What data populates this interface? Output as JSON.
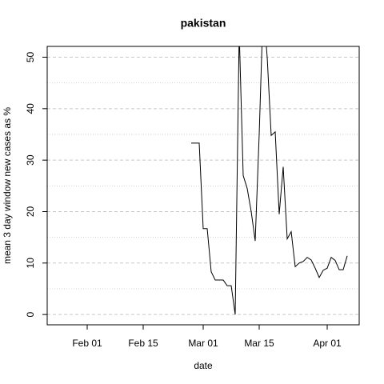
{
  "chart_data": {
    "type": "line",
    "title": "pakistan",
    "xlabel": "date",
    "ylabel": "mean  3  day window new cases as %",
    "x": [
      "Feb 27",
      "Feb 28",
      "Feb 29",
      "Mar 01",
      "Mar 02",
      "Mar 03",
      "Mar 04",
      "Mar 05",
      "Mar 06",
      "Mar 07",
      "Mar 08",
      "Mar 09",
      "Mar 10",
      "Mar 11",
      "Mar 12",
      "Mar 13",
      "Mar 14",
      "Mar 15",
      "Mar 16",
      "Mar 17",
      "Mar 18",
      "Mar 19",
      "Mar 20",
      "Mar 21",
      "Mar 22",
      "Mar 23",
      "Mar 24",
      "Mar 25",
      "Mar 26",
      "Mar 27",
      "Mar 28",
      "Mar 29",
      "Mar 30",
      "Mar 31",
      "Apr 01",
      "Apr 02",
      "Apr 03",
      "Apr 04",
      "Apr 05",
      "Apr 06"
    ],
    "series": [
      {
        "name": "pakistan",
        "color": "#000000",
        "values": [
          33.3,
          33.3,
          33.3,
          16.7,
          16.7,
          8.3,
          6.7,
          6.7,
          6.7,
          5.6,
          5.6,
          0,
          55,
          27,
          24.5,
          20,
          14.3,
          35,
          60,
          50,
          34.8,
          35.5,
          19.5,
          28.7,
          14.7,
          16.1,
          9.3,
          10,
          10.3,
          11.1,
          10.6,
          9,
          7.2,
          8.6,
          9,
          11.1,
          10.5,
          8.7,
          8.7,
          11.4
        ]
      }
    ],
    "xlim": [
      "Jan 22",
      "Apr 09"
    ],
    "xticks": [
      "Feb 01",
      "Feb 15",
      "Mar 01",
      "Mar 15",
      "Apr 01"
    ],
    "ylim": [
      -2.0,
      52.1
    ],
    "yticks": [
      0,
      10,
      20,
      30,
      40,
      50
    ],
    "yminor": [
      5,
      15,
      25,
      35,
      45
    ],
    "grid": true
  }
}
